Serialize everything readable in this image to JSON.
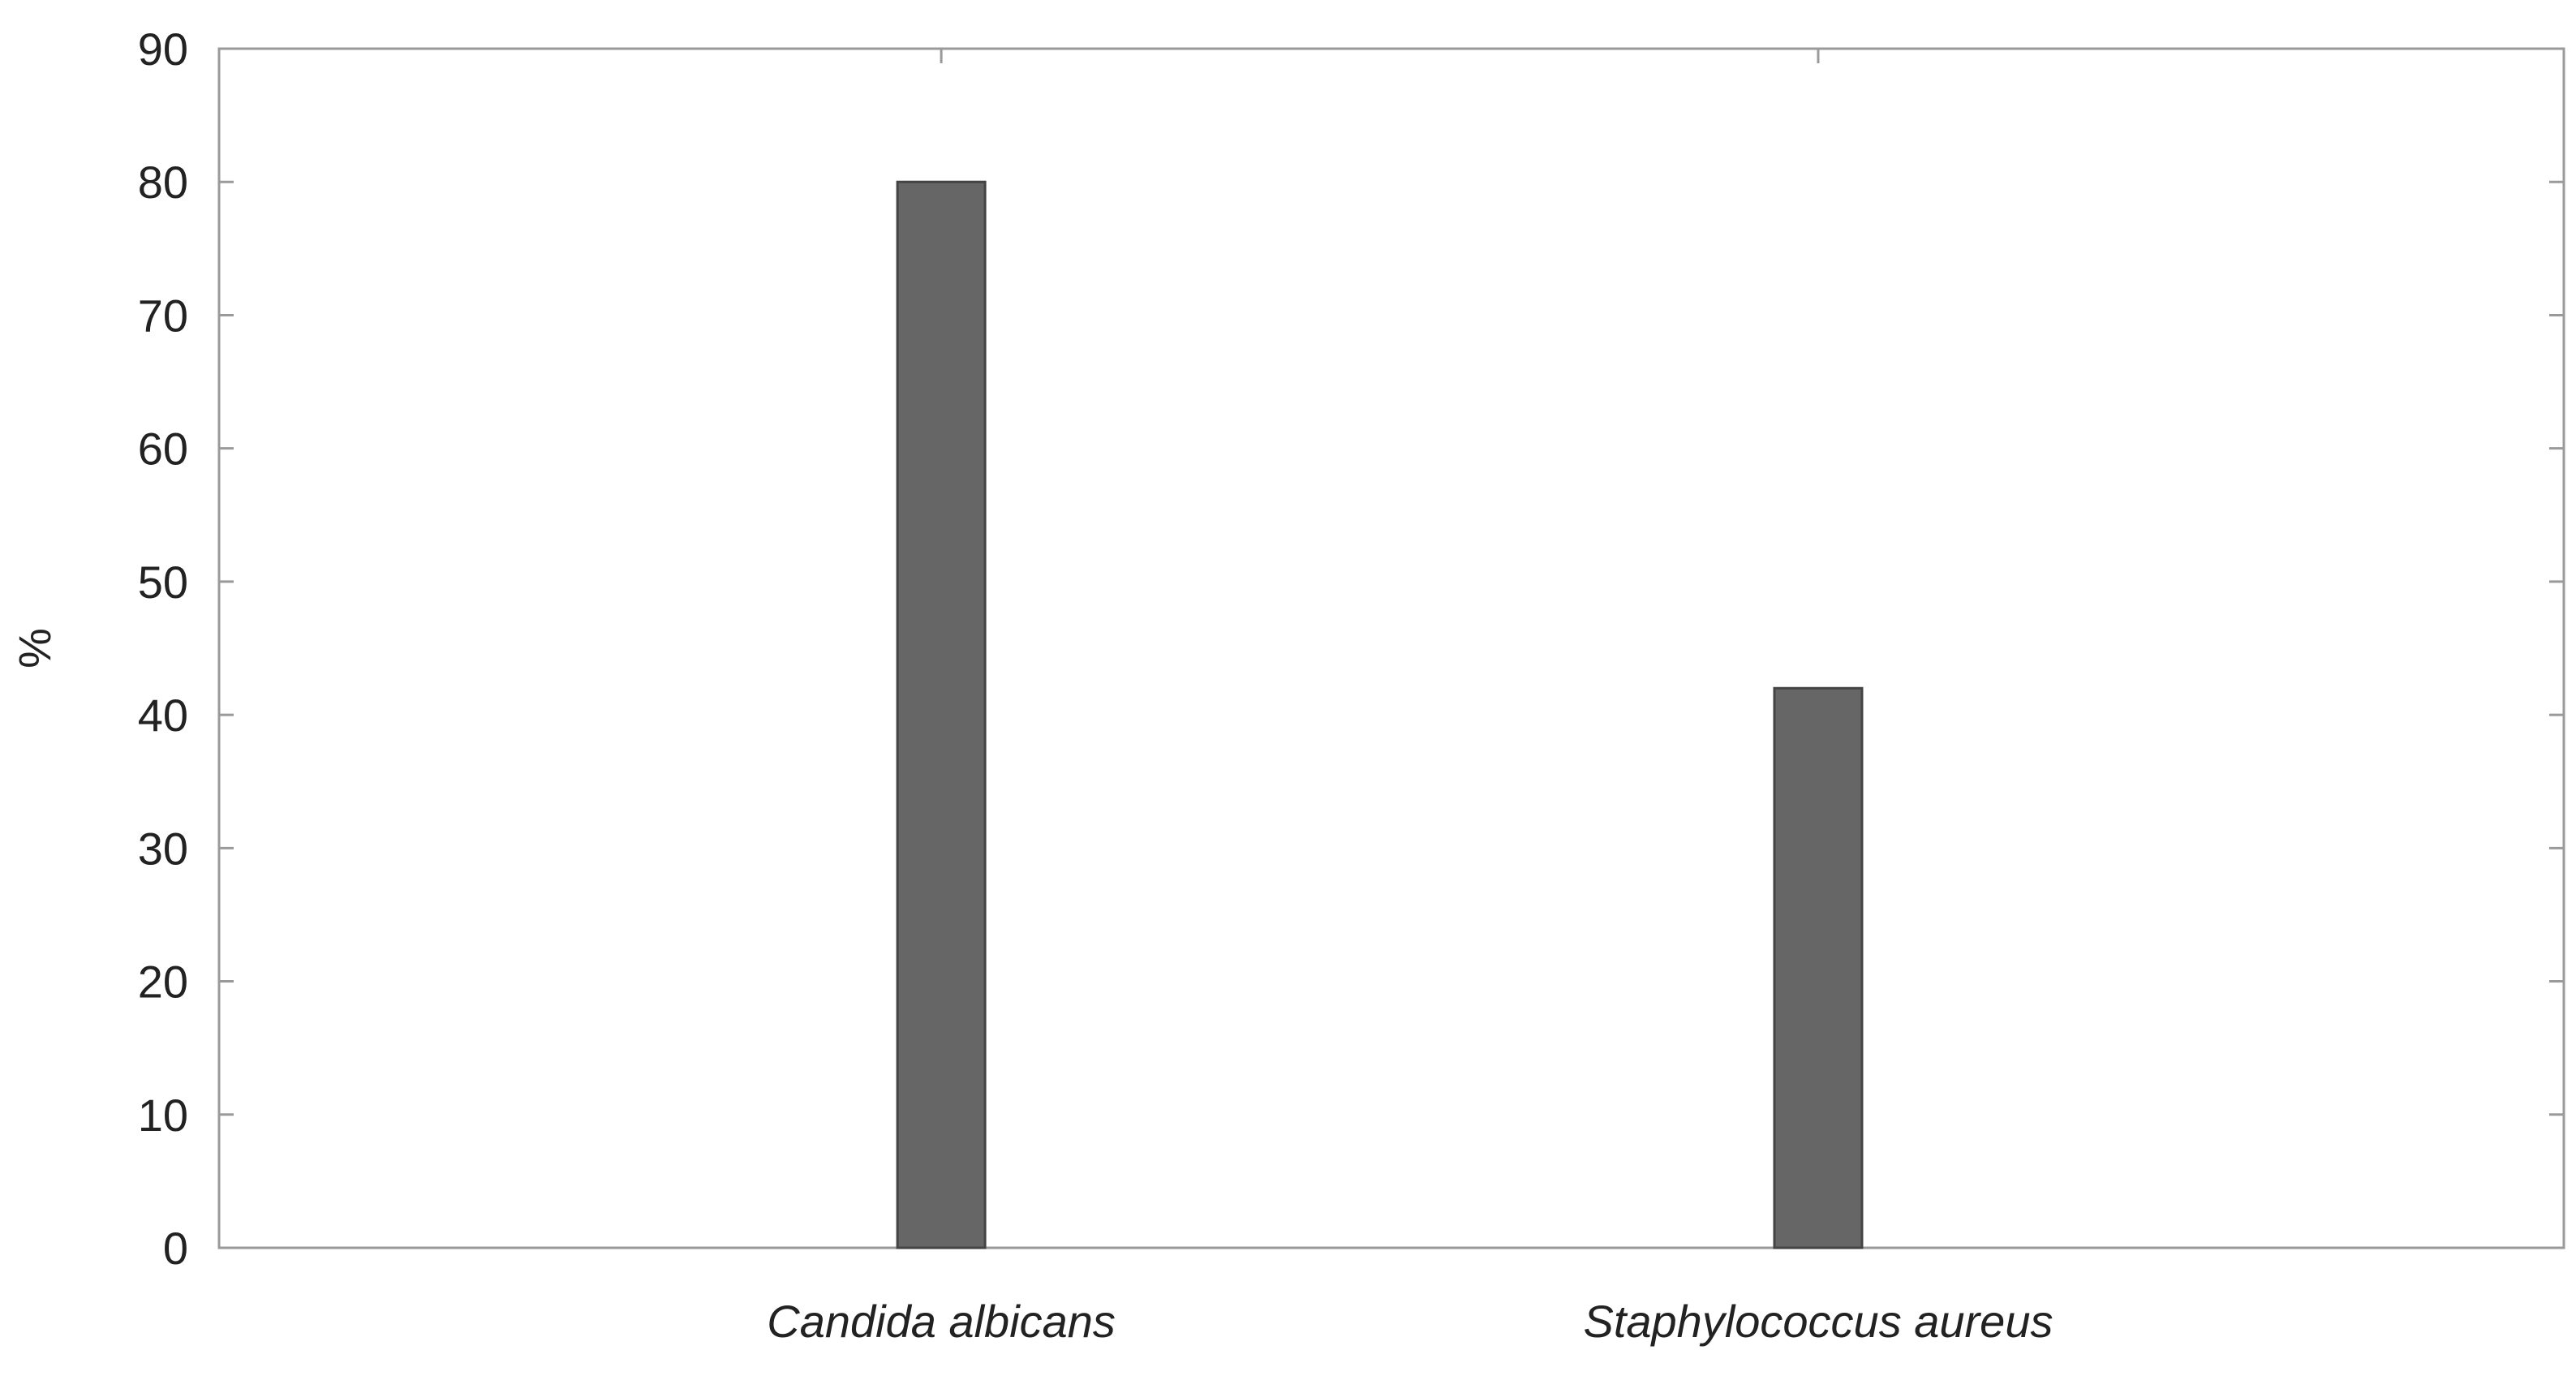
{
  "chart_data": {
    "type": "bar",
    "categories": [
      "Candida albicans",
      "Staphylococcus aureus"
    ],
    "values": [
      80,
      42
    ],
    "title": "",
    "xlabel": "",
    "ylabel": "%",
    "ylim": [
      0,
      90
    ],
    "yticks": [
      "0",
      "10",
      "20",
      "30",
      "40",
      "50",
      "60",
      "70",
      "80",
      "90"
    ],
    "grid": false,
    "legend": "none",
    "bar_color": "#666666",
    "axis_color": "#9a9a9a"
  }
}
